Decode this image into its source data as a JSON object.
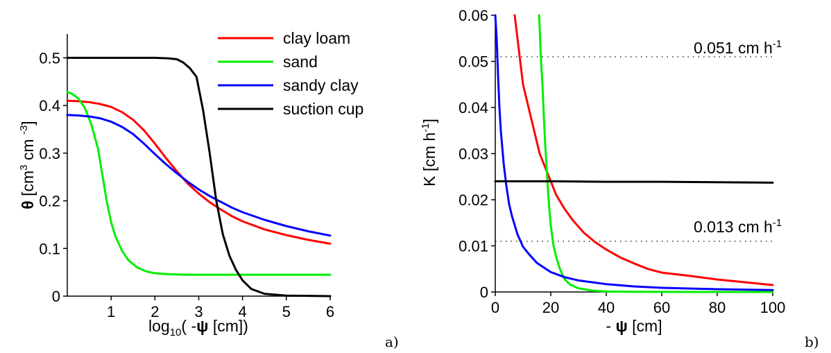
{
  "chart_data": [
    {
      "type": "line",
      "panel_label": "a)",
      "xlabel_parts": [
        "log",
        "10",
        "( -",
        "ψ",
        " [cm])"
      ],
      "ylabel_parts": [
        "θ",
        " [cm",
        "3",
        " cm ",
        "-3",
        "]"
      ],
      "xlim": [
        0,
        6
      ],
      "ylim": [
        0,
        0.55
      ],
      "xticks": [
        1,
        2,
        3,
        4,
        5,
        6
      ],
      "xtick_labels": [
        "1",
        "2",
        "3",
        "4",
        "5",
        "6"
      ],
      "yticks": [
        0,
        0.1,
        0.2,
        0.3,
        0.4,
        0.5
      ],
      "ytick_labels": [
        "0",
        "0.1",
        "0.2",
        "0.3",
        "0.4",
        "0.5"
      ],
      "legend_position": "top-right",
      "series": [
        {
          "name": "clay loam",
          "color": "#ff0000",
          "x": [
            0,
            0.25,
            0.5,
            0.75,
            1,
            1.25,
            1.5,
            1.75,
            2,
            2.25,
            2.5,
            2.75,
            3,
            3.25,
            3.5,
            3.75,
            4,
            4.5,
            5,
            5.5,
            6
          ],
          "y": [
            0.41,
            0.409,
            0.407,
            0.403,
            0.397,
            0.386,
            0.37,
            0.348,
            0.32,
            0.29,
            0.262,
            0.236,
            0.215,
            0.197,
            0.182,
            0.168,
            0.157,
            0.14,
            0.128,
            0.118,
            0.11
          ]
        },
        {
          "name": "sand",
          "color": "#00ee00",
          "x": [
            0,
            0.1,
            0.25,
            0.4,
            0.55,
            0.7,
            0.8,
            0.9,
            1.0,
            1.1,
            1.25,
            1.4,
            1.6,
            1.8,
            2.0,
            2.3,
            2.7,
            3,
            4,
            5,
            6
          ],
          "y": [
            0.428,
            0.425,
            0.415,
            0.395,
            0.36,
            0.31,
            0.255,
            0.2,
            0.155,
            0.125,
            0.095,
            0.075,
            0.06,
            0.052,
            0.048,
            0.046,
            0.045,
            0.045,
            0.045,
            0.045,
            0.045
          ]
        },
        {
          "name": "sandy clay",
          "color": "#0000ff",
          "x": [
            0,
            0.25,
            0.5,
            0.75,
            1,
            1.25,
            1.5,
            1.75,
            2,
            2.25,
            2.5,
            2.75,
            3,
            3.25,
            3.5,
            3.75,
            4,
            4.5,
            5,
            5.5,
            6
          ],
          "y": [
            0.38,
            0.379,
            0.377,
            0.373,
            0.366,
            0.355,
            0.34,
            0.32,
            0.298,
            0.277,
            0.258,
            0.24,
            0.224,
            0.21,
            0.198,
            0.186,
            0.176,
            0.16,
            0.147,
            0.136,
            0.127
          ]
        },
        {
          "name": "suction cup",
          "color": "#000000",
          "x": [
            0,
            0.5,
            1,
            1.5,
            2,
            2.3,
            2.5,
            2.65,
            2.8,
            2.95,
            3.1,
            3.25,
            3.4,
            3.55,
            3.7,
            3.85,
            4.0,
            4.2,
            4.5,
            5,
            6
          ],
          "y": [
            0.5,
            0.5,
            0.5,
            0.5,
            0.5,
            0.499,
            0.497,
            0.49,
            0.478,
            0.46,
            0.39,
            0.3,
            0.2,
            0.13,
            0.085,
            0.055,
            0.033,
            0.015,
            0.005,
            0.001,
            0.0
          ]
        }
      ]
    },
    {
      "type": "line",
      "panel_label": "b)",
      "xlabel_parts": [
        "- ",
        "ψ",
        " [cm]"
      ],
      "ylabel_parts": [
        "K [cm h",
        "-1",
        "]"
      ],
      "xlim": [
        0,
        100
      ],
      "ylim": [
        0,
        0.06
      ],
      "xticks": [
        0,
        20,
        40,
        60,
        80,
        100
      ],
      "xtick_labels": [
        "0",
        "20",
        "40",
        "60",
        "80",
        "100"
      ],
      "yticks": [
        0,
        0.01,
        0.02,
        0.03,
        0.04,
        0.05,
        0.06
      ],
      "ytick_labels": [
        "0",
        "0.01",
        "0.02",
        "0.03",
        "0.04",
        "0.05",
        "0.06"
      ],
      "annotations": [
        {
          "text": "0.051 cm h",
          "sup": "-1",
          "y": 0.051
        },
        {
          "text": "0.013 cm h",
          "sup": "-1",
          "y": 0.011
        }
      ],
      "series": [
        {
          "name": "clay loam",
          "color": "#ff0000",
          "x": [
            7,
            8,
            10,
            12,
            14,
            16,
            18,
            20,
            22,
            25,
            28,
            32,
            36,
            40,
            45,
            50,
            55,
            60,
            70,
            80,
            90,
            100
          ],
          "y": [
            0.06,
            0.055,
            0.045,
            0.04,
            0.035,
            0.03,
            0.027,
            0.024,
            0.021,
            0.018,
            0.0155,
            0.0128,
            0.0108,
            0.0092,
            0.0075,
            0.0062,
            0.005,
            0.0042,
            0.0035,
            0.0027,
            0.0021,
            0.0015
          ]
        },
        {
          "name": "sand",
          "color": "#00ee00",
          "x": [
            15.8,
            16.5,
            17,
            17.5,
            18,
            18.5,
            19,
            19.5,
            20,
            21,
            22,
            23,
            24,
            25,
            27,
            30,
            35,
            40,
            50,
            60,
            80,
            100
          ],
          "y": [
            0.06,
            0.05,
            0.045,
            0.038,
            0.032,
            0.027,
            0.022,
            0.018,
            0.0145,
            0.01,
            0.0075,
            0.0055,
            0.004,
            0.0028,
            0.0016,
            0.0008,
            0.0003,
            0.0001,
            3e-05,
            1e-05,
            0.0,
            0.0
          ]
        },
        {
          "name": "sandy clay",
          "color": "#0000ff",
          "x": [
            0,
            0.5,
            1,
            1.5,
            2,
            3,
            4,
            5,
            6,
            8,
            10,
            12,
            15,
            20,
            25,
            30,
            40,
            50,
            60,
            80,
            100
          ],
          "y": [
            0.06,
            0.055,
            0.047,
            0.04,
            0.035,
            0.028,
            0.023,
            0.019,
            0.0165,
            0.0125,
            0.0098,
            0.0083,
            0.0063,
            0.0043,
            0.0032,
            0.0025,
            0.0017,
            0.0012,
            0.0009,
            0.0006,
            0.0004
          ]
        },
        {
          "name": "suction cup",
          "color": "#000000",
          "x": [
            0,
            20,
            40,
            60,
            80,
            100
          ],
          "y": [
            0.024,
            0.024,
            0.0239,
            0.0239,
            0.0238,
            0.0237
          ]
        }
      ]
    }
  ]
}
